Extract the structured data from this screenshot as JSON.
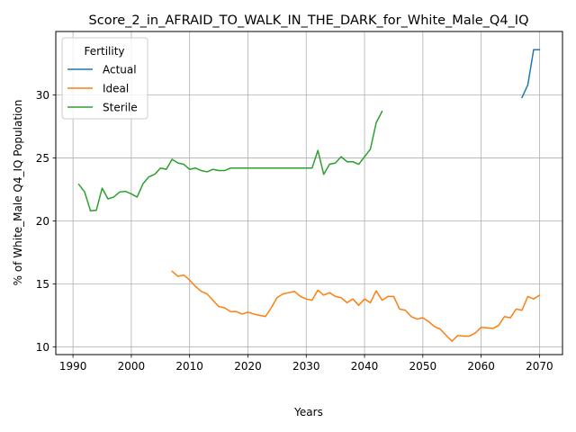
{
  "chart_data": {
    "type": "line",
    "title": "Score_2_in_AFRAID_TO_WALK_IN_THE_DARK_for_White_Male_Q4_IQ",
    "xlabel": "Years",
    "ylabel": "% of White_Male Q4_IQ Population",
    "xlim": [
      1987.05,
      2073.95
    ],
    "ylim": [
      9.38,
      35.05
    ],
    "xticks": [
      1990,
      2000,
      2010,
      2020,
      2030,
      2040,
      2050,
      2060,
      2070
    ],
    "yticks": [
      10,
      15,
      20,
      25,
      30
    ],
    "grid": true,
    "legend": {
      "title": "Fertility",
      "placement": "top-left"
    },
    "series": [
      {
        "name": "Actual",
        "color": "#1f77b4",
        "x": [
          2067,
          2068,
          2069,
          2070
        ],
        "y": [
          29.8,
          30.8,
          33.6,
          33.6
        ]
      },
      {
        "name": "Ideal",
        "color": "#ff7f0e",
        "x": [
          2007,
          2008,
          2009,
          2010,
          2011,
          2012,
          2013,
          2014,
          2015,
          2016,
          2017,
          2018,
          2019,
          2020,
          2021,
          2022,
          2023,
          2024,
          2025,
          2026,
          2027,
          2028,
          2029,
          2030,
          2031,
          2032,
          2033,
          2034,
          2035,
          2036,
          2037,
          2038,
          2039,
          2040,
          2041,
          2042,
          2043,
          2044,
          2045,
          2046,
          2047,
          2048,
          2049,
          2050,
          2051,
          2052,
          2053,
          2054,
          2055,
          2056,
          2057,
          2058,
          2059,
          2060,
          2061,
          2062,
          2063,
          2064,
          2065,
          2066,
          2067,
          2068,
          2069,
          2070
        ],
        "y": [
          16.0,
          15.6,
          15.7,
          15.3,
          14.8,
          14.4,
          14.2,
          13.7,
          13.2,
          13.1,
          12.8,
          12.8,
          12.6,
          12.75,
          12.6,
          12.5,
          12.4,
          13.1,
          13.9,
          14.2,
          14.3,
          14.4,
          14.0,
          13.8,
          13.7,
          14.5,
          14.1,
          14.3,
          14.0,
          13.9,
          13.5,
          13.8,
          13.3,
          13.8,
          13.5,
          14.45,
          13.7,
          14.0,
          14.0,
          13.0,
          12.9,
          12.4,
          12.2,
          12.3,
          12.0,
          11.6,
          11.4,
          10.9,
          10.45,
          10.9,
          10.85,
          10.85,
          11.1,
          11.55,
          11.5,
          11.45,
          11.7,
          12.4,
          12.3,
          13.0,
          12.9,
          14.0,
          13.8,
          14.1
        ]
      },
      {
        "name": "Sterile",
        "color": "#2ca02c",
        "x": [
          1991,
          1992,
          1993,
          1994,
          1995,
          1996,
          1997,
          1998,
          1999,
          2000,
          2001,
          2002,
          2003,
          2004,
          2005,
          2006,
          2007,
          2008,
          2009,
          2010,
          2011,
          2012,
          2013,
          2014,
          2015,
          2016,
          2017,
          2018,
          2019,
          2020,
          2021,
          2022,
          2023,
          2024,
          2025,
          2026,
          2027,
          2028,
          2029,
          2030,
          2031,
          2032,
          2033,
          2034,
          2035,
          2036,
          2037,
          2038,
          2039,
          2040,
          2041,
          2042,
          2043
        ],
        "y": [
          22.9,
          22.3,
          20.8,
          20.85,
          22.6,
          21.75,
          21.9,
          22.3,
          22.35,
          22.15,
          21.9,
          22.95,
          23.5,
          23.7,
          24.2,
          24.1,
          24.9,
          24.6,
          24.5,
          24.1,
          24.2,
          24.0,
          23.9,
          24.1,
          24.0,
          24.0,
          24.2,
          24.2,
          24.2,
          24.2,
          24.2,
          24.2,
          24.2,
          24.2,
          24.2,
          24.2,
          24.2,
          24.2,
          24.2,
          24.2,
          24.2,
          25.6,
          23.7,
          24.5,
          24.6,
          25.1,
          24.7,
          24.7,
          24.5,
          25.1,
          25.7,
          27.8,
          28.7
        ]
      }
    ]
  }
}
